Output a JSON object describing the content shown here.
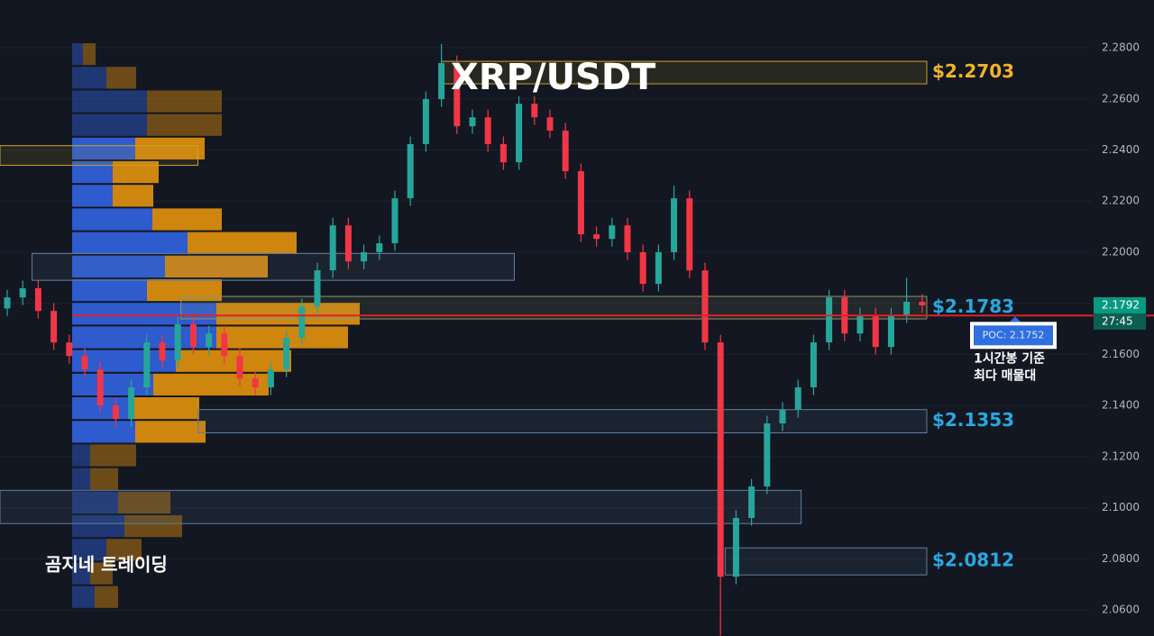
{
  "chart_data": {
    "type": "candlestick",
    "title": "XRP/USDT",
    "watermark": "곰지네 트레이딩",
    "ylim": [
      2.0498,
      2.2987
    ],
    "yticks": [
      {
        "value": 2.06,
        "label": "2.0600"
      },
      {
        "value": 2.08,
        "label": "2.0800"
      },
      {
        "value": 2.1,
        "label": "2.1000"
      },
      {
        "value": 2.12,
        "label": "2.1200"
      },
      {
        "value": 2.14,
        "label": "2.1400"
      },
      {
        "value": 2.16,
        "label": "2.1600"
      },
      {
        "value": 2.18,
        "label": "2.1800"
      },
      {
        "value": 2.2,
        "label": "2.2000"
      },
      {
        "value": 2.22,
        "label": "2.2200"
      },
      {
        "value": 2.24,
        "label": "2.2400"
      },
      {
        "value": 2.26,
        "label": "2.2600"
      },
      {
        "value": 2.28,
        "label": "2.2800"
      }
    ],
    "grid": true,
    "up_color": "#26a69a",
    "down_color": "#f23645",
    "open": [
      2.178,
      2.1823,
      2.1859,
      2.177,
      2.1647,
      2.1594,
      2.1541,
      2.14,
      2.1347,
      2.1471,
      2.1647,
      2.1576,
      2.1718,
      2.1629,
      2.1682,
      2.1594,
      2.1506,
      2.1471,
      2.1541,
      2.1665,
      2.1788,
      2.1929,
      2.2105,
      2.1964,
      2.2,
      2.2035,
      2.2211,
      2.2423,
      2.2599,
      2.274,
      2.2493,
      2.2528,
      2.2423,
      2.2352,
      2.2581,
      2.2528,
      2.2476,
      2.2317,
      2.207,
      2.2052,
      2.2105,
      2.2,
      2.1876,
      2.2,
      2.2211,
      2.1929,
      2.1647,
      2.073,
      2.096,
      2.1083,
      2.133,
      2.1383,
      2.1471,
      2.1647,
      2.1823,
      2.1682,
      2.1753,
      2.1629,
      2.1753,
      2.1806
    ],
    "high": [
      2.1853,
      2.1889,
      2.1889,
      2.18,
      2.1677,
      2.1624,
      2.1571,
      2.143,
      2.1501,
      2.1677,
      2.1677,
      2.1748,
      2.1748,
      2.1712,
      2.1712,
      2.1624,
      2.1536,
      2.1571,
      2.1695,
      2.1818,
      2.1959,
      2.2135,
      2.2135,
      2.203,
      2.2065,
      2.2241,
      2.2453,
      2.2629,
      2.2815,
      2.277,
      2.2558,
      2.2558,
      2.2453,
      2.2611,
      2.2611,
      2.2558,
      2.2506,
      2.2347,
      2.21,
      2.2135,
      2.2135,
      2.203,
      2.203,
      2.2261,
      2.2241,
      2.1959,
      2.1677,
      2.099,
      2.1113,
      2.136,
      2.1413,
      2.1501,
      2.1677,
      2.1853,
      2.1853,
      2.1783,
      2.1783,
      2.1783,
      2.19,
      2.1836
    ],
    "low": [
      2.175,
      2.1793,
      2.174,
      2.1617,
      2.1564,
      2.1511,
      2.137,
      2.1317,
      2.1317,
      2.1441,
      2.1546,
      2.1546,
      2.1599,
      2.1599,
      2.1564,
      2.1476,
      2.1441,
      2.1441,
      2.1511,
      2.1635,
      2.1758,
      2.1899,
      2.1934,
      2.1934,
      2.197,
      2.2005,
      2.2181,
      2.2393,
      2.2569,
      2.2463,
      2.2463,
      2.2393,
      2.2322,
      2.2322,
      2.2498,
      2.2446,
      2.2287,
      2.204,
      2.2022,
      2.2022,
      2.197,
      2.1846,
      2.1846,
      2.197,
      2.1899,
      2.1617,
      2.05,
      2.07,
      2.093,
      2.1053,
      2.13,
      2.1353,
      2.1441,
      2.1617,
      2.1652,
      2.1652,
      2.1599,
      2.1599,
      2.1723,
      2.1762
    ],
    "close": [
      2.1823,
      2.1859,
      2.177,
      2.1647,
      2.1594,
      2.1541,
      2.14,
      2.1347,
      2.1471,
      2.1647,
      2.1576,
      2.1718,
      2.1629,
      2.1682,
      2.1594,
      2.1506,
      2.1471,
      2.1541,
      2.1665,
      2.1788,
      2.1929,
      2.2105,
      2.1964,
      2.2,
      2.2035,
      2.2211,
      2.2423,
      2.2599,
      2.274,
      2.2493,
      2.2528,
      2.2423,
      2.2352,
      2.2581,
      2.2528,
      2.2476,
      2.2317,
      2.207,
      2.2052,
      2.2105,
      2.2,
      2.1876,
      2.2,
      2.2211,
      2.1929,
      2.1647,
      2.073,
      2.096,
      2.1083,
      2.133,
      2.1383,
      2.1471,
      2.1647,
      2.1823,
      2.1682,
      2.1753,
      2.1629,
      2.1753,
      2.1806,
      2.1792
    ],
    "volume_profile": {
      "buy_color": "#2f5fd8",
      "sell_color": "#d98c0f",
      "buy": [
        12,
        38,
        83,
        83,
        70,
        45,
        45,
        89,
        128,
        103,
        83,
        160,
        160,
        115,
        90,
        64,
        70,
        20,
        20,
        51,
        58,
        38,
        20,
        25
      ],
      "sell": [
        14,
        33,
        83,
        83,
        77,
        51,
        45,
        77,
        121,
        114,
        83,
        159,
        146,
        128,
        128,
        77,
        78,
        51,
        31,
        58,
        64,
        39,
        25,
        26
      ],
      "value_area_rows": [
        4,
        16
      ]
    },
    "zones": [
      {
        "top": 2.2747,
        "bottom": 2.2659,
        "from": 28,
        "to": 59.3,
        "color": "#c9a227",
        "label": "$2.2703",
        "label_color": "#f0b429"
      },
      {
        "top": 2.1827,
        "bottom": 2.1739,
        "from": 11.2,
        "to": 59.3,
        "color": "#8a9a6a",
        "label": "$2.1783",
        "label_color": "#29a8e0"
      },
      {
        "top": 2.1384,
        "bottom": 2.1293,
        "from": 12.3,
        "to": 59.3,
        "color": "#5f7f9f",
        "label": "$2.1353",
        "label_color": "#29a8e0"
      },
      {
        "top": 2.0843,
        "bottom": 2.0737,
        "from": 46.3,
        "to": 59.3,
        "color": "#5f7f9f",
        "label": "$2.0812",
        "label_color": "#29a8e0"
      },
      {
        "top": 2.1995,
        "bottom": 2.189,
        "from": 1.6,
        "to": 32.7,
        "color": "#5f7f9f"
      },
      {
        "top": 2.2417,
        "bottom": 2.234,
        "from": -0.5,
        "to": 12.3,
        "color": "#c9a227"
      },
      {
        "top": 2.1068,
        "bottom": 2.0938,
        "from": -0.5,
        "to": 51.2,
        "color": "#5f7f9f"
      }
    ],
    "poc": {
      "value": 2.1752,
      "label": "POC: 2.1752",
      "color": "#e0202a"
    },
    "poc_note": [
      "1시간봉 기준",
      "최다 매물대"
    ],
    "last_price": 2.1792,
    "countdown": "27:45"
  }
}
